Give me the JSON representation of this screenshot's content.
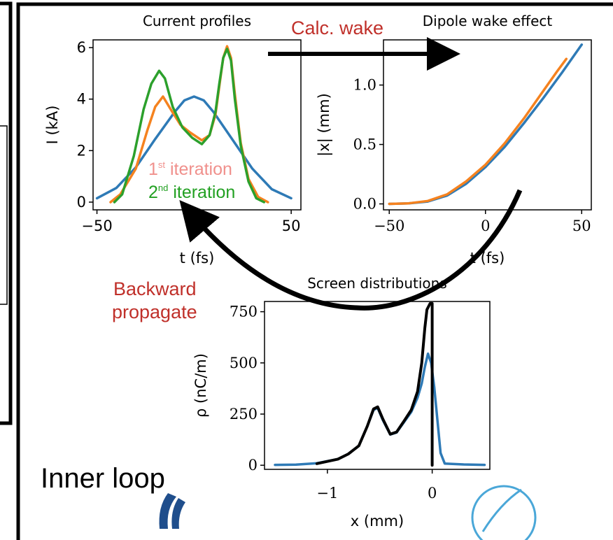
{
  "labels": {
    "calc_wake": "Calc. wake",
    "backward_propagate_1": "Backward",
    "backward_propagate_2": "propagate",
    "inner_loop": "Inner loop",
    "iteration_1_num": "1",
    "iteration_1_sup": "st",
    "iteration_2_num": "2",
    "iteration_2_sup": "nd",
    "iteration_word": " iteration"
  },
  "colors": {
    "series_blue": "#2e7ab6",
    "series_orange": "#f5821f",
    "series_green": "#2ca02c",
    "series_black": "#000000",
    "label_red": "#c0302a",
    "iter1_text": "#f0908c",
    "iter2_text": "#22a022"
  },
  "chart_data": [
    {
      "type": "line",
      "title": "Current profiles",
      "xlabel": "t (fs)",
      "ylabel": "I (kA)",
      "xlim": [
        -52,
        55
      ],
      "ylim": [
        -0.3,
        6.3
      ],
      "xticks": [
        -50,
        0,
        50
      ],
      "xtick_labels": [
        "−50",
        "0",
        "50"
      ],
      "yticks": [
        0,
        2,
        4,
        6
      ],
      "ytick_labels": [
        "0",
        "2",
        "4",
        "6"
      ],
      "series": [
        {
          "color_key": "series_blue",
          "points": [
            [
              -50,
              0.15
            ],
            [
              -40,
              0.55
            ],
            [
              -30,
              1.35
            ],
            [
              -20,
              2.45
            ],
            [
              -10,
              3.5
            ],
            [
              -5,
              3.95
            ],
            [
              0,
              4.1
            ],
            [
              5,
              3.95
            ],
            [
              10,
              3.5
            ],
            [
              20,
              2.4
            ],
            [
              30,
              1.3
            ],
            [
              40,
              0.5
            ],
            [
              50,
              0.15
            ]
          ]
        },
        {
          "color_key": "series_orange",
          "points": [
            [
              -43,
              0
            ],
            [
              -38,
              0.3
            ],
            [
              -30,
              1.3
            ],
            [
              -24,
              2.8
            ],
            [
              -20,
              3.7
            ],
            [
              -16,
              4.1
            ],
            [
              -12,
              3.6
            ],
            [
              -7,
              3.0
            ],
            [
              -2,
              2.7
            ],
            [
              4,
              2.4
            ],
            [
              8,
              2.6
            ],
            [
              11,
              3.4
            ],
            [
              13,
              4.5
            ],
            [
              15,
              5.6
            ],
            [
              17,
              6.05
            ],
            [
              19,
              5.6
            ],
            [
              21,
              4.2
            ],
            [
              24,
              2.3
            ],
            [
              28,
              0.9
            ],
            [
              33,
              0.2
            ],
            [
              38,
              0
            ]
          ]
        },
        {
          "color_key": "series_green",
          "points": [
            [
              -41,
              0
            ],
            [
              -37,
              0.3
            ],
            [
              -31,
              1.8
            ],
            [
              -26,
              3.6
            ],
            [
              -22,
              4.6
            ],
            [
              -18,
              5.1
            ],
            [
              -15,
              4.8
            ],
            [
              -11,
              3.7
            ],
            [
              -6,
              2.9
            ],
            [
              -1,
              2.5
            ],
            [
              4,
              2.25
            ],
            [
              8,
              2.6
            ],
            [
              11,
              3.5
            ],
            [
              13,
              4.6
            ],
            [
              15,
              5.6
            ],
            [
              17,
              5.95
            ],
            [
              19,
              5.5
            ],
            [
              21,
              4.0
            ],
            [
              24,
              2.2
            ],
            [
              28,
              0.8
            ],
            [
              32,
              0.15
            ],
            [
              36,
              0
            ]
          ]
        }
      ]
    },
    {
      "type": "line",
      "title": "Dipole wake effect",
      "xlabel": "t (fs)",
      "ylabel": "|x| (mm)",
      "xlim": [
        -53,
        55
      ],
      "ylim": [
        -0.05,
        1.38
      ],
      "xticks": [
        -50,
        0,
        50
      ],
      "xtick_labels": [
        "−50",
        "0",
        "50"
      ],
      "yticks": [
        0.0,
        0.5,
        1.0
      ],
      "ytick_labels": [
        "0.0",
        "0.5",
        "1.0"
      ],
      "series": [
        {
          "color_key": "series_blue",
          "points": [
            [
              -50,
              0
            ],
            [
              -40,
              0.005
            ],
            [
              -30,
              0.02
            ],
            [
              -20,
              0.07
            ],
            [
              -10,
              0.17
            ],
            [
              0,
              0.31
            ],
            [
              10,
              0.48
            ],
            [
              20,
              0.68
            ],
            [
              30,
              0.89
            ],
            [
              40,
              1.11
            ],
            [
              50,
              1.34
            ]
          ]
        },
        {
          "color_key": "series_orange",
          "points": [
            [
              -50,
              0
            ],
            [
              -40,
              0.005
            ],
            [
              -30,
              0.025
            ],
            [
              -20,
              0.08
            ],
            [
              -10,
              0.19
            ],
            [
              0,
              0.33
            ],
            [
              10,
              0.51
            ],
            [
              20,
              0.72
            ],
            [
              30,
              0.95
            ],
            [
              37,
              1.11
            ],
            [
              42,
              1.22
            ]
          ]
        }
      ]
    },
    {
      "type": "line",
      "title": "Screen distributions",
      "xlabel": "x (mm)",
      "ylabel": "ρ (nC/m)",
      "xlim": [
        -1.6,
        0.55
      ],
      "ylim": [
        -20,
        800
      ],
      "xticks": [
        -1,
        0
      ],
      "xtick_labels": [
        "−1",
        "0"
      ],
      "yticks": [
        0,
        250,
        500,
        750
      ],
      "ytick_labels": [
        "0",
        "250",
        "500",
        "750"
      ],
      "series": [
        {
          "color_key": "series_blue",
          "points": [
            [
              -1.5,
              2
            ],
            [
              -1.3,
              3
            ],
            [
              -1.1,
              10
            ],
            [
              -0.9,
              30
            ],
            [
              -0.8,
              55
            ],
            [
              -0.7,
              95
            ],
            [
              -0.62,
              190
            ],
            [
              -0.56,
              270
            ],
            [
              -0.52,
              280
            ],
            [
              -0.47,
              220
            ],
            [
              -0.4,
              150
            ],
            [
              -0.34,
              160
            ],
            [
              -0.27,
              210
            ],
            [
              -0.2,
              260
            ],
            [
              -0.14,
              330
            ],
            [
              -0.1,
              400
            ],
            [
              -0.07,
              480
            ],
            [
              -0.04,
              545
            ],
            [
              -0.01,
              500
            ],
            [
              0.02,
              380
            ],
            [
              0.05,
              220
            ],
            [
              0.08,
              60
            ],
            [
              0.12,
              8
            ],
            [
              0.3,
              4
            ],
            [
              0.5,
              2
            ]
          ]
        },
        {
          "color_key": "series_black",
          "points": [
            [
              -1.1,
              8
            ],
            [
              -0.9,
              30
            ],
            [
              -0.8,
              55
            ],
            [
              -0.7,
              95
            ],
            [
              -0.62,
              190
            ],
            [
              -0.56,
              275
            ],
            [
              -0.52,
              285
            ],
            [
              -0.47,
              225
            ],
            [
              -0.4,
              152
            ],
            [
              -0.34,
              162
            ],
            [
              -0.27,
              215
            ],
            [
              -0.2,
              270
            ],
            [
              -0.14,
              360
            ],
            [
              -0.1,
              500
            ],
            [
              -0.07,
              670
            ],
            [
              -0.05,
              760
            ],
            [
              -0.02,
              790
            ],
            [
              0,
              790
            ],
            [
              0,
              0
            ]
          ]
        }
      ]
    }
  ]
}
